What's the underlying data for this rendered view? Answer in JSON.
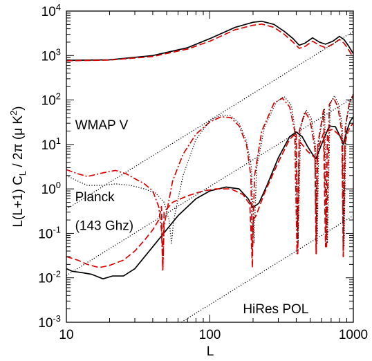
{
  "chart_data": {
    "type": "line",
    "xlabel": "L",
    "ylabel": "L(L+1) C_L / 2π (μ K^2)",
    "ylabel_parts": {
      "a": "L(L+1) C",
      "sub": "L",
      "b": " / 2",
      "pi": "π",
      "c": " (",
      "mu": "μ",
      "d": " K",
      "sup": "2",
      "e": ")"
    },
    "x_scale": "log",
    "y_scale": "log",
    "xlim": [
      10,
      1000
    ],
    "ylim": [
      0.001,
      10000
    ],
    "x_ticks": [
      {
        "value": 10,
        "label": "10"
      },
      {
        "value": 100,
        "label": "100"
      },
      {
        "value": 1000,
        "label": "1000"
      }
    ],
    "y_ticks": [
      {
        "value": 0.001,
        "base": "10",
        "exp": "-3"
      },
      {
        "value": 0.01,
        "base": "10",
        "exp": "-2"
      },
      {
        "value": 0.1,
        "base": "10",
        "exp": "-1"
      },
      {
        "value": 1,
        "base": "10",
        "exp": "0"
      },
      {
        "value": 10,
        "base": "10",
        "exp": "1"
      },
      {
        "value": 100,
        "base": "10",
        "exp": "2"
      },
      {
        "value": 1000,
        "base": "10",
        "exp": "3"
      },
      {
        "value": 10000,
        "base": "10",
        "exp": "4"
      }
    ],
    "grid": false,
    "legend": "none",
    "annotations": [
      {
        "text": "WMAP V",
        "x": 11.5,
        "y": 22
      },
      {
        "text": "Planck",
        "x": 11.5,
        "y": 0.53
      },
      {
        "text": "(143 Ghz)",
        "x": 11.5,
        "y": 0.12
      },
      {
        "text": "HiRes POL",
        "x": 170,
        "y": 0.0016
      }
    ],
    "series": [
      {
        "style": "solid",
        "color": "#000000",
        "points": [
          [
            10,
            780
          ],
          [
            20,
            800
          ],
          [
            40,
            1000
          ],
          [
            70,
            1500
          ],
          [
            100,
            2400
          ],
          [
            150,
            4300
          ],
          [
            200,
            5600
          ],
          [
            230,
            5900
          ],
          [
            280,
            5000
          ],
          [
            330,
            3500
          ],
          [
            380,
            2400
          ],
          [
            420,
            1700
          ],
          [
            460,
            1900
          ],
          [
            520,
            2500
          ],
          [
            580,
            2000
          ],
          [
            640,
            1800
          ],
          [
            720,
            2100
          ],
          [
            800,
            2700
          ],
          [
            860,
            2300
          ],
          [
            920,
            1700
          ],
          [
            1000,
            1100
          ]
        ]
      },
      {
        "style": "dashed",
        "color": "#dd0000",
        "points": [
          [
            10,
            760
          ],
          [
            20,
            790
          ],
          [
            40,
            950
          ],
          [
            70,
            1400
          ],
          [
            100,
            2100
          ],
          [
            150,
            3800
          ],
          [
            200,
            4800
          ],
          [
            230,
            5100
          ],
          [
            280,
            4300
          ],
          [
            330,
            3000
          ],
          [
            380,
            2000
          ],
          [
            420,
            1450
          ],
          [
            460,
            1600
          ],
          [
            520,
            2100
          ],
          [
            580,
            1700
          ],
          [
            640,
            1500
          ],
          [
            720,
            1800
          ],
          [
            800,
            2300
          ],
          [
            860,
            1900
          ],
          [
            920,
            1400
          ],
          [
            1000,
            900
          ]
        ]
      },
      {
        "style": "solid",
        "color": "#000000",
        "points": [
          [
            10,
            0.016
          ],
          [
            11,
            0.014
          ],
          [
            13,
            0.013
          ],
          [
            15,
            0.012
          ],
          [
            18,
            0.0095
          ],
          [
            21,
            0.011
          ],
          [
            25,
            0.011
          ],
          [
            30,
            0.016
          ],
          [
            40,
            0.05
          ],
          [
            60,
            0.25
          ],
          [
            80,
            0.6
          ],
          [
            100,
            0.9
          ],
          [
            130,
            1.1
          ],
          [
            160,
            1.0
          ],
          [
            185,
            0.6
          ],
          [
            200,
            0.38
          ],
          [
            220,
            0.48
          ],
          [
            250,
            1.2
          ],
          [
            300,
            5
          ],
          [
            360,
            15
          ],
          [
            400,
            19
          ],
          [
            440,
            15
          ],
          [
            480,
            9
          ],
          [
            520,
            6
          ],
          [
            550,
            4.8
          ],
          [
            600,
            10
          ],
          [
            680,
            26
          ],
          [
            750,
            25
          ],
          [
            810,
            15
          ],
          [
            850,
            10
          ],
          [
            900,
            20
          ],
          [
            950,
            33
          ],
          [
            1000,
            42
          ]
        ]
      },
      {
        "style": "dashed",
        "color": "#dd0000",
        "points": [
          [
            10,
            0.03
          ],
          [
            12,
            0.025
          ],
          [
            14,
            0.02
          ],
          [
            17,
            0.017
          ],
          [
            20,
            0.019
          ],
          [
            25,
            0.025
          ],
          [
            30,
            0.04
          ],
          [
            35,
            0.07
          ],
          [
            40,
            0.12
          ],
          [
            44,
            0.2
          ],
          [
            46,
            0.4
          ],
          [
            47,
            0.015
          ],
          [
            48,
            0.3
          ],
          [
            55,
            0.5
          ],
          [
            70,
            0.7
          ],
          [
            90,
            0.9
          ],
          [
            110,
            1.0
          ],
          [
            140,
            1.0
          ],
          [
            170,
            0.75
          ],
          [
            190,
            0.45
          ],
          [
            198,
            0.017
          ],
          [
            200,
            0.2
          ],
          [
            210,
            0.25
          ],
          [
            240,
            0.8
          ],
          [
            300,
            4
          ],
          [
            360,
            13
          ],
          [
            400,
            18
          ],
          [
            410,
            0.035
          ],
          [
            420,
            12
          ],
          [
            480,
            7
          ],
          [
            540,
            5
          ],
          [
            550,
            0.035
          ],
          [
            560,
            7
          ],
          [
            620,
            18
          ],
          [
            640,
            0.05
          ],
          [
            660,
            20
          ],
          [
            720,
            22
          ],
          [
            800,
            16
          ],
          [
            840,
            12
          ],
          [
            850,
            0.03
          ],
          [
            870,
            10
          ],
          [
            920,
            20
          ],
          [
            960,
            26
          ],
          [
            1000,
            30
          ]
        ]
      },
      {
        "style": "dashdot",
        "color": "#dd0000",
        "points": [
          [
            10,
            2.7
          ],
          [
            12,
            2.2
          ],
          [
            14,
            1.9
          ],
          [
            18,
            2.3
          ],
          [
            22,
            2.6
          ],
          [
            26,
            2.2
          ],
          [
            30,
            1.7
          ],
          [
            35,
            1.3
          ],
          [
            40,
            0.9
          ],
          [
            44,
            0.4
          ],
          [
            46,
            0.12
          ],
          [
            47,
            0.015
          ],
          [
            48,
            0.15
          ],
          [
            55,
            1.5
          ],
          [
            65,
            6
          ],
          [
            80,
            17
          ],
          [
            100,
            32
          ],
          [
            120,
            42
          ],
          [
            140,
            40
          ],
          [
            160,
            26
          ],
          [
            180,
            10
          ],
          [
            193,
            2
          ],
          [
            198,
            0.035
          ],
          [
            205,
            2
          ],
          [
            230,
            20
          ],
          [
            280,
            85
          ],
          [
            320,
            110
          ],
          [
            360,
            70
          ],
          [
            390,
            20
          ],
          [
            405,
            0.035
          ],
          [
            420,
            20
          ],
          [
            460,
            55
          ],
          [
            500,
            35
          ],
          [
            540,
            8
          ],
          [
            552,
            0.035
          ],
          [
            565,
            10
          ],
          [
            620,
            60
          ],
          [
            650,
            0.05
          ],
          [
            680,
            80
          ],
          [
            730,
            110
          ],
          [
            780,
            70
          ],
          [
            830,
            20
          ],
          [
            852,
            0.03
          ],
          [
            880,
            25
          ],
          [
            940,
            90
          ],
          [
            1000,
            130
          ]
        ]
      },
      {
        "style": "dotted",
        "color": "#000000",
        "points": [
          [
            10,
            2.0
          ],
          [
            12,
            1.5
          ],
          [
            14,
            1.2
          ],
          [
            18,
            1.2
          ],
          [
            22,
            1.3
          ],
          [
            28,
            1.2
          ],
          [
            35,
            1.0
          ],
          [
            42,
            0.8
          ],
          [
            48,
            0.5
          ],
          [
            52,
            0.2
          ],
          [
            54,
            0.06
          ],
          [
            56,
            0.2
          ],
          [
            65,
            2
          ],
          [
            80,
            13
          ],
          [
            100,
            34
          ],
          [
            120,
            46
          ],
          [
            140,
            44
          ],
          [
            160,
            30
          ],
          [
            180,
            12
          ],
          [
            195,
            3
          ],
          [
            203,
            0.06
          ],
          [
            212,
            3
          ],
          [
            240,
            24
          ],
          [
            290,
            90
          ],
          [
            330,
            120
          ],
          [
            370,
            75
          ],
          [
            395,
            20
          ],
          [
            412,
            0.06
          ],
          [
            430,
            25
          ],
          [
            470,
            60
          ],
          [
            510,
            38
          ],
          [
            545,
            9
          ],
          [
            560,
            0.06
          ],
          [
            575,
            12
          ],
          [
            630,
            65
          ],
          [
            660,
            0.06
          ],
          [
            690,
            85
          ],
          [
            740,
            125
          ],
          [
            790,
            80
          ],
          [
            840,
            25
          ],
          [
            862,
            0.05
          ],
          [
            890,
            30
          ],
          [
            950,
            95
          ],
          [
            1000,
            140
          ]
        ]
      },
      {
        "style": "dotted",
        "color": "#000000",
        "points": [
          [
            10,
            0.35
          ],
          [
            1000,
            3500
          ]
        ]
      },
      {
        "style": "dotted",
        "color": "#000000",
        "points": [
          [
            10,
            0.0113
          ],
          [
            1000,
            113
          ]
        ]
      },
      {
        "style": "dotted",
        "color": "#000000",
        "points": [
          [
            20,
            0.0001
          ],
          [
            1000,
            0.25
          ]
        ]
      }
    ]
  }
}
